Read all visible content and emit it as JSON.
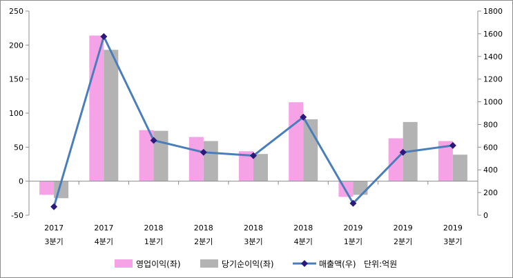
{
  "chart_data": {
    "type": "bar+line",
    "categories": [
      {
        "year": "2017",
        "quarter": "3분기"
      },
      {
        "year": "2017",
        "quarter": "4분기"
      },
      {
        "year": "2018",
        "quarter": "1분기"
      },
      {
        "year": "2018",
        "quarter": "2분기"
      },
      {
        "year": "2018",
        "quarter": "3분기"
      },
      {
        "year": "2018",
        "quarter": "4분기"
      },
      {
        "year": "2019",
        "quarter": "1분기"
      },
      {
        "year": "2019",
        "quarter": "2분기"
      },
      {
        "year": "2019",
        "quarter": "3분기"
      }
    ],
    "series": [
      {
        "name": "영업이익(좌)",
        "type": "bar",
        "axis": "left",
        "color": "#f6a2e6",
        "values": [
          -20,
          214,
          75,
          65,
          44,
          116,
          -23,
          63,
          59
        ]
      },
      {
        "name": "당기순이익(좌)",
        "type": "bar",
        "axis": "left",
        "color": "#b3b3b3",
        "values": [
          -25,
          193,
          74,
          59,
          40,
          91,
          -20,
          87,
          39
        ]
      },
      {
        "name": "매출액(우)",
        "type": "line",
        "axis": "right",
        "color": "#4a7ebb",
        "marker_color": "#2b1a7a",
        "values": [
          75,
          1575,
          660,
          555,
          525,
          865,
          105,
          555,
          615
        ]
      }
    ],
    "y_left": {
      "min": -50,
      "max": 250,
      "step": 50,
      "ticks": [
        "-50",
        "0",
        "50",
        "100",
        "150",
        "200",
        "250"
      ]
    },
    "y_right": {
      "min": 0,
      "max": 1800,
      "step": 200,
      "ticks": [
        "0",
        "200",
        "400",
        "600",
        "800",
        "1000",
        "1200",
        "1400",
        "1600",
        "1800"
      ]
    },
    "unit_note": "단위:억원",
    "grid": false,
    "legend_position": "bottom"
  }
}
